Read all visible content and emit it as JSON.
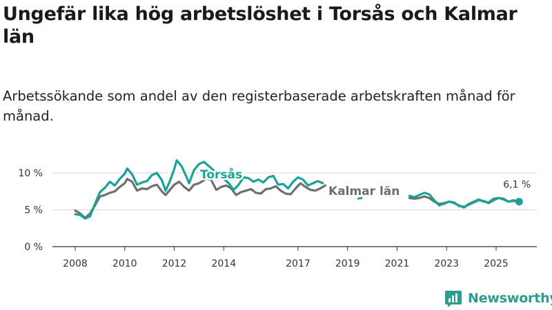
{
  "header": {
    "title": "Ungefär lika hög arbetslöshet i Torsås och Kalmar län",
    "subtitle": "Arbetssökande som andel av den registerbaserade arbetskraften månad för månad."
  },
  "brand": {
    "name": "Newsworthy",
    "icon": "newsworthy-logo-icon",
    "color": "#2a9d8f"
  },
  "chart_data": {
    "type": "line",
    "title": "Ungefär lika hög arbetslöshet i Torsås och Kalmar län",
    "subtitle": "Arbetssökande som andel av den registerbaserade arbetskraften månad för månad.",
    "xlabel": "",
    "ylabel": "",
    "x_ticks": [
      "2008",
      "2010",
      "2012",
      "2014",
      "2017",
      "2019",
      "2021",
      "2023",
      "2025"
    ],
    "y_ticks": [
      "0 %",
      "5 %",
      "10 %"
    ],
    "ylim": [
      0,
      12
    ],
    "xlim": [
      2007.5,
      2026.7
    ],
    "grid": "horizontal",
    "legend": "inline labels",
    "end_label": "6,1 %",
    "series": [
      {
        "name": "Torsås",
        "color": "#17a398",
        "points": [
          [
            2008.0,
            4.4
          ],
          [
            2008.2,
            4.3
          ],
          [
            2008.4,
            3.8
          ],
          [
            2008.6,
            4.1
          ],
          [
            2008.8,
            5.8
          ],
          [
            2009.0,
            7.4
          ],
          [
            2009.2,
            8.0
          ],
          [
            2009.4,
            8.8
          ],
          [
            2009.6,
            8.3
          ],
          [
            2009.8,
            9.2
          ],
          [
            2010.0,
            9.9
          ],
          [
            2010.1,
            10.6
          ],
          [
            2010.3,
            9.8
          ],
          [
            2010.5,
            8.4
          ],
          [
            2010.7,
            8.7
          ],
          [
            2010.9,
            8.9
          ],
          [
            2011.1,
            9.7
          ],
          [
            2011.3,
            10.0
          ],
          [
            2011.5,
            9.0
          ],
          [
            2011.65,
            7.6
          ],
          [
            2011.8,
            8.7
          ],
          [
            2012.0,
            10.5
          ],
          [
            2012.1,
            11.7
          ],
          [
            2012.3,
            10.9
          ],
          [
            2012.5,
            9.4
          ],
          [
            2012.6,
            8.6
          ],
          [
            2012.8,
            10.4
          ],
          [
            2013.0,
            11.2
          ],
          [
            2013.2,
            11.5
          ],
          [
            2013.3,
            11.2
          ],
          [
            2014.2,
            8.6
          ],
          [
            2014.4,
            7.7
          ],
          [
            2014.6,
            8.4
          ],
          [
            2014.8,
            9.4
          ],
          [
            2015.0,
            9.3
          ],
          [
            2015.2,
            8.8
          ],
          [
            2015.4,
            9.1
          ],
          [
            2015.6,
            8.7
          ],
          [
            2015.8,
            9.4
          ],
          [
            2016.0,
            9.6
          ],
          [
            2016.2,
            8.4
          ],
          [
            2016.4,
            8.5
          ],
          [
            2016.6,
            7.9
          ],
          [
            2016.8,
            8.8
          ],
          [
            2017.0,
            9.4
          ],
          [
            2017.2,
            9.1
          ],
          [
            2017.4,
            8.3
          ],
          [
            2017.6,
            8.6
          ],
          [
            2017.8,
            8.9
          ],
          [
            2018.0,
            8.6
          ]
        ]
      },
      {
        "name": "Kalmar län",
        "color": "#6e6e6e",
        "points": [
          [
            2008.0,
            4.9
          ],
          [
            2008.2,
            4.5
          ],
          [
            2008.4,
            3.9
          ],
          [
            2008.6,
            4.5
          ],
          [
            2008.8,
            5.6
          ],
          [
            2009.0,
            6.8
          ],
          [
            2009.2,
            7.0
          ],
          [
            2009.4,
            7.3
          ],
          [
            2009.6,
            7.5
          ],
          [
            2009.8,
            8.1
          ],
          [
            2010.0,
            8.6
          ],
          [
            2010.1,
            9.2
          ],
          [
            2010.3,
            8.8
          ],
          [
            2010.5,
            7.6
          ],
          [
            2010.7,
            7.9
          ],
          [
            2010.9,
            7.8
          ],
          [
            2011.1,
            8.2
          ],
          [
            2011.3,
            8.4
          ],
          [
            2011.5,
            7.5
          ],
          [
            2011.65,
            7.0
          ],
          [
            2011.8,
            7.6
          ],
          [
            2012.0,
            8.4
          ],
          [
            2012.2,
            8.8
          ],
          [
            2012.4,
            8.1
          ],
          [
            2012.6,
            7.6
          ],
          [
            2012.8,
            8.4
          ],
          [
            2013.0,
            8.6
          ],
          [
            2013.2,
            9.0
          ],
          [
            2013.3,
            9.3
          ],
          [
            2013.5,
            9.0
          ],
          [
            2013.7,
            7.7
          ],
          [
            2013.9,
            8.1
          ],
          [
            2014.1,
            8.3
          ],
          [
            2014.3,
            7.9
          ],
          [
            2014.5,
            7.0
          ],
          [
            2014.7,
            7.4
          ],
          [
            2014.9,
            7.6
          ],
          [
            2015.1,
            7.8
          ],
          [
            2015.3,
            7.3
          ],
          [
            2015.5,
            7.2
          ],
          [
            2015.7,
            7.8
          ],
          [
            2015.9,
            7.9
          ],
          [
            2016.1,
            8.2
          ],
          [
            2016.3,
            7.6
          ],
          [
            2016.5,
            7.2
          ],
          [
            2016.7,
            7.1
          ],
          [
            2016.9,
            7.9
          ],
          [
            2017.1,
            8.6
          ],
          [
            2017.3,
            8.1
          ],
          [
            2017.5,
            7.7
          ],
          [
            2017.7,
            7.6
          ],
          [
            2017.9,
            7.9
          ],
          [
            2018.1,
            8.3
          ]
        ]
      },
      {
        "name": "Torsås (2021–2026)",
        "color": "#17a398",
        "points": [
          [
            2021.5,
            6.9
          ],
          [
            2021.7,
            6.7
          ],
          [
            2021.9,
            7.0
          ],
          [
            2022.1,
            7.3
          ],
          [
            2022.3,
            7.1
          ],
          [
            2022.5,
            6.3
          ],
          [
            2022.7,
            5.6
          ],
          [
            2022.9,
            5.8
          ],
          [
            2023.1,
            6.1
          ],
          [
            2023.3,
            5.9
          ],
          [
            2023.5,
            5.6
          ],
          [
            2023.7,
            5.3
          ],
          [
            2023.9,
            5.8
          ],
          [
            2024.1,
            6.1
          ],
          [
            2024.3,
            6.4
          ],
          [
            2024.5,
            6.1
          ],
          [
            2024.7,
            6.0
          ],
          [
            2024.9,
            6.5
          ],
          [
            2025.1,
            6.6
          ],
          [
            2025.3,
            6.4
          ],
          [
            2025.5,
            6.1
          ],
          [
            2025.7,
            6.3
          ],
          [
            2025.9,
            6.1
          ]
        ]
      },
      {
        "name": "Kalmar län (2021–2026)",
        "color": "#6e6e6e",
        "points": [
          [
            2021.5,
            6.6
          ],
          [
            2021.7,
            6.5
          ],
          [
            2021.9,
            6.6
          ],
          [
            2022.1,
            6.8
          ],
          [
            2022.3,
            6.6
          ],
          [
            2022.5,
            6.1
          ],
          [
            2022.7,
            5.8
          ],
          [
            2022.9,
            5.9
          ],
          [
            2023.1,
            6.1
          ],
          [
            2023.3,
            6.0
          ],
          [
            2023.5,
            5.5
          ],
          [
            2023.7,
            5.4
          ],
          [
            2023.9,
            5.7
          ],
          [
            2024.1,
            6.0
          ],
          [
            2024.3,
            6.3
          ],
          [
            2024.5,
            6.2
          ],
          [
            2024.7,
            5.9
          ],
          [
            2024.9,
            6.3
          ],
          [
            2025.1,
            6.6
          ],
          [
            2025.3,
            6.5
          ],
          [
            2025.5,
            6.1
          ],
          [
            2025.7,
            6.2
          ],
          [
            2025.9,
            6.1
          ]
        ]
      }
    ],
    "marker": {
      "x": 2025.9,
      "y": 6.1
    }
  }
}
